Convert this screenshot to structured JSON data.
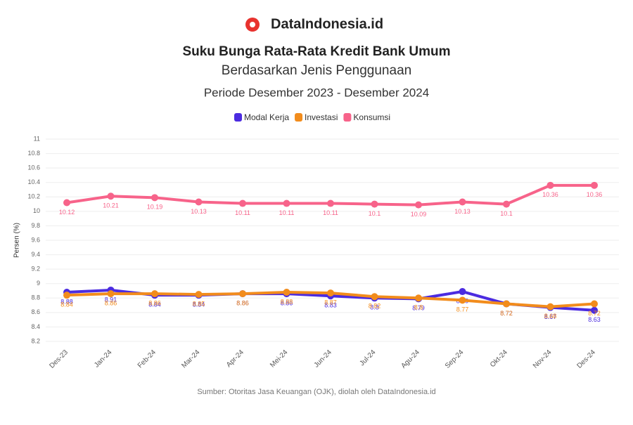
{
  "brand": "DataIndonesia.id",
  "chart_data": {
    "type": "line",
    "title": "Suku Bunga Rata-Rata Kredit Bank Umum",
    "subtitle": "Berdasarkan Jenis Penggunaan",
    "period": "Periode Desember 2023 - Desember 2024",
    "y_label": "Persen (%)",
    "source": "Sumber: Otoritas Jasa Keuangan (OJK), diolah oleh DataIndonesia.id",
    "categories": [
      "Des-23",
      "Jan-24",
      "Feb-24",
      "Mar-24",
      "Apr-24",
      "Mei-24",
      "Jun-24",
      "Jul-24",
      "Agu-24",
      "Sep-24",
      "Okt-24",
      "Nov-24",
      "Des-24"
    ],
    "series": [
      {
        "name": "Modal Kerja",
        "color": "#4b2be0",
        "values": [
          8.88,
          8.91,
          8.84,
          8.84,
          8.86,
          8.86,
          8.83,
          8.8,
          8.79,
          8.89,
          8.72,
          8.67,
          8.63
        ]
      },
      {
        "name": "Investasi",
        "color": "#f28c1c",
        "values": [
          8.84,
          8.86,
          8.86,
          8.85,
          8.86,
          8.88,
          8.87,
          8.82,
          8.8,
          8.77,
          8.72,
          8.68,
          8.72
        ]
      },
      {
        "name": "Konsumsi",
        "color": "#f7638a",
        "values": [
          10.12,
          10.21,
          10.19,
          10.13,
          10.11,
          10.11,
          10.11,
          10.1,
          10.09,
          10.13,
          10.1,
          10.36,
          10.36
        ]
      }
    ],
    "ylim": [
      8.2,
      11
    ],
    "yticks": [
      8.2,
      8.4,
      8.6,
      8.8,
      9,
      9.2,
      9.4,
      9.6,
      9.8,
      10,
      10.2,
      10.4,
      10.6,
      10.8,
      11
    ],
    "grid": true
  }
}
